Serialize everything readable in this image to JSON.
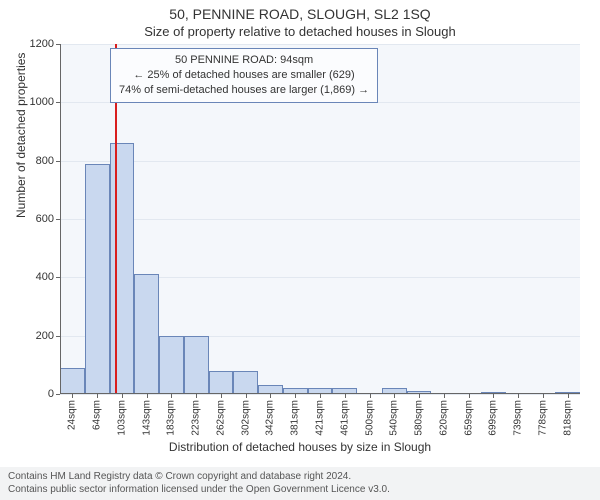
{
  "title_line1": "50, PENNINE ROAD, SLOUGH, SL2 1SQ",
  "title_line2": "Size of property relative to detached houses in Slough",
  "ylabel": "Number of detached properties",
  "xlabel": "Distribution of detached houses by size in Slough",
  "chart": {
    "type": "histogram",
    "plot_bg": "#f4f7fb",
    "grid_color": "#e2e8f0",
    "bar_fill": "#c9d8ef",
    "bar_edge": "#6a86b8",
    "marker_color": "#d91e1e",
    "marker_x_value": 94,
    "ylim": [
      0,
      1200
    ],
    "yticks": [
      0,
      200,
      400,
      600,
      800,
      1000,
      1200
    ],
    "bin_width": 40,
    "bins_start": 4,
    "x_tick_labels": [
      "24sqm",
      "64sqm",
      "103sqm",
      "143sqm",
      "183sqm",
      "223sqm",
      "262sqm",
      "302sqm",
      "342sqm",
      "381sqm",
      "421sqm",
      "461sqm",
      "500sqm",
      "540sqm",
      "580sqm",
      "620sqm",
      "659sqm",
      "699sqm",
      "739sqm",
      "778sqm",
      "818sqm"
    ],
    "values": [
      90,
      790,
      860,
      410,
      200,
      200,
      80,
      80,
      30,
      20,
      20,
      20,
      0,
      20,
      10,
      0,
      0,
      5,
      0,
      0,
      5
    ]
  },
  "annotation": {
    "bg": "#fbfcfe",
    "border": "#6a86b8",
    "line1": "50 PENNINE ROAD: 94sqm",
    "line2": "← 25% of detached houses are smaller (629)",
    "line3": "74% of semi-detached houses are larger (1,869) →"
  },
  "footer": {
    "bg": "#f2f3f4",
    "line1": "Contains HM Land Registry data © Crown copyright and database right 2024.",
    "line2": "Contains public sector information licensed under the Open Government Licence v3.0."
  }
}
